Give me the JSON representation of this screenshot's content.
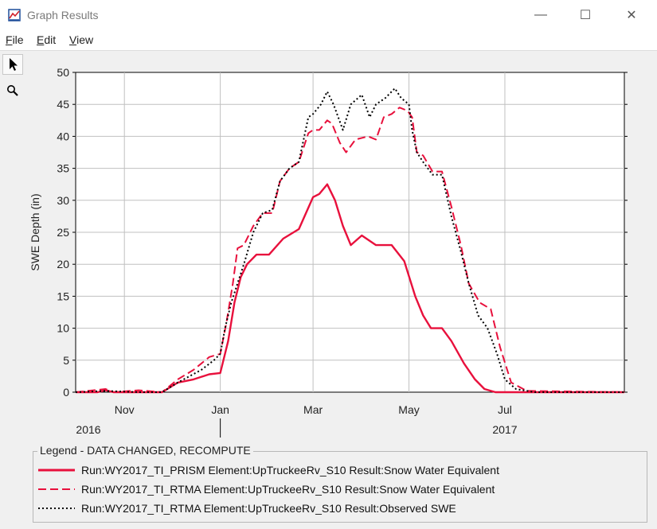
{
  "window": {
    "title": "Graph Results",
    "controls": {
      "minimize": "—",
      "maximize": "☐",
      "close": "✕"
    }
  },
  "menu": [
    {
      "key": "F",
      "rest": "ile"
    },
    {
      "key": "E",
      "rest": "dit"
    },
    {
      "key": "V",
      "rest": "iew"
    }
  ],
  "toolbar": {
    "tools": [
      "pointer-icon",
      "zoom-icon"
    ]
  },
  "colors": {
    "prism": "#e8103c",
    "rtma": "#e8103c",
    "observed": "#000000",
    "grid": "#c0c0c0"
  },
  "chart_data": {
    "type": "line",
    "title": "",
    "xlabel": "",
    "ylabel": "SWE Depth (in)",
    "ylim": [
      0,
      50
    ],
    "xlim": [
      "2016-10-01",
      "2017-09-15"
    ],
    "yticks": [
      0,
      5,
      10,
      15,
      20,
      25,
      30,
      35,
      40,
      45,
      50
    ],
    "xticks": [
      {
        "date": "2016-11-01",
        "label": "Nov"
      },
      {
        "date": "2017-01-01",
        "label": "Jan"
      },
      {
        "date": "2017-03-01",
        "label": "Mar"
      },
      {
        "date": "2017-05-01",
        "label": "May"
      },
      {
        "date": "2017-07-01",
        "label": "Jul"
      }
    ],
    "year_labels": [
      {
        "date": "2016-10-01",
        "label": "2016"
      },
      {
        "date": "2017-07-01",
        "label": "2017"
      }
    ],
    "grid": true,
    "legend_title": "Legend - DATA CHANGED, RECOMPUTE",
    "legend_position": "bottom",
    "series": [
      {
        "name": "Run:WY2017_TI_PRISM Element:UpTruckeeRv_S10 Result:Snow Water Equivalent",
        "style": "solid",
        "x": [
          "2016-10-01",
          "2016-10-15",
          "2016-10-20",
          "2016-10-25",
          "2016-11-10",
          "2016-11-25",
          "2016-12-05",
          "2016-12-15",
          "2016-12-25",
          "2017-01-01",
          "2017-01-06",
          "2017-01-10",
          "2017-01-14",
          "2017-01-18",
          "2017-01-24",
          "2017-02-01",
          "2017-02-10",
          "2017-02-20",
          "2017-03-01",
          "2017-03-05",
          "2017-03-10",
          "2017-03-15",
          "2017-03-20",
          "2017-03-25",
          "2017-04-01",
          "2017-04-10",
          "2017-04-20",
          "2017-04-28",
          "2017-05-05",
          "2017-05-10",
          "2017-05-15",
          "2017-05-22",
          "2017-05-28",
          "2017-06-05",
          "2017-06-12",
          "2017-06-18",
          "2017-06-25",
          "2017-07-01",
          "2017-09-15"
        ],
        "y": [
          0,
          0,
          0.3,
          0,
          0,
          0,
          1.5,
          2.0,
          2.8,
          3.0,
          8.0,
          14.0,
          18.0,
          20.0,
          21.5,
          21.5,
          24.0,
          25.5,
          30.5,
          31.0,
          32.5,
          30.0,
          26.0,
          23.0,
          24.5,
          23.0,
          23.0,
          20.5,
          15.0,
          12.0,
          10.0,
          10.0,
          8.0,
          4.5,
          2.0,
          0.5,
          0,
          0,
          0
        ]
      },
      {
        "name": "Run:WY2017_TI_RTMA Element:UpTruckeeRv_S10 Result:Snow Water Equivalent",
        "style": "dashed",
        "x": [
          "2016-10-01",
          "2016-10-20",
          "2016-10-25",
          "2016-11-10",
          "2016-11-25",
          "2016-12-05",
          "2016-12-15",
          "2016-12-25",
          "2017-01-01",
          "2017-01-05",
          "2017-01-09",
          "2017-01-12",
          "2017-01-16",
          "2017-01-22",
          "2017-01-28",
          "2017-02-03",
          "2017-02-08",
          "2017-02-14",
          "2017-02-20",
          "2017-02-26",
          "2017-03-01",
          "2017-03-05",
          "2017-03-10",
          "2017-03-13",
          "2017-03-18",
          "2017-03-22",
          "2017-03-28",
          "2017-04-05",
          "2017-04-10",
          "2017-04-15",
          "2017-04-20",
          "2017-04-25",
          "2017-04-30",
          "2017-05-03",
          "2017-05-06",
          "2017-05-10",
          "2017-05-16",
          "2017-05-22",
          "2017-05-28",
          "2017-06-03",
          "2017-06-08",
          "2017-06-15",
          "2017-06-22",
          "2017-06-28",
          "2017-07-05",
          "2017-07-15",
          "2017-09-15"
        ],
        "y": [
          0,
          0.5,
          0,
          0.3,
          0,
          2.0,
          3.5,
          5.5,
          6.0,
          11.0,
          17.0,
          22.5,
          23.0,
          26.0,
          28.0,
          28.0,
          33.0,
          35.0,
          36.0,
          40.5,
          41.0,
          41.0,
          42.5,
          42.0,
          39.0,
          37.5,
          39.5,
          40.0,
          39.5,
          43.0,
          43.5,
          44.5,
          44.0,
          43.0,
          37.5,
          37.0,
          34.5,
          34.5,
          29.0,
          23.0,
          17.0,
          14.0,
          13.0,
          7.0,
          1.5,
          0.2,
          0
        ]
      },
      {
        "name": "Run:WY2017_TI_RTMA Element:UpTruckeeRv_S10 Result:Observed SWE",
        "style": "dotted",
        "x": [
          "2016-10-01",
          "2016-10-20",
          "2016-11-10",
          "2016-11-25",
          "2016-12-05",
          "2016-12-20",
          "2016-12-28",
          "2017-01-01",
          "2017-01-04",
          "2017-01-08",
          "2017-01-12",
          "2017-01-16",
          "2017-01-22",
          "2017-01-28",
          "2017-02-03",
          "2017-02-08",
          "2017-02-14",
          "2017-02-20",
          "2017-02-26",
          "2017-03-01",
          "2017-03-06",
          "2017-03-10",
          "2017-03-14",
          "2017-03-20",
          "2017-03-25",
          "2017-04-01",
          "2017-04-06",
          "2017-04-10",
          "2017-04-16",
          "2017-04-22",
          "2017-04-26",
          "2017-05-01",
          "2017-05-03",
          "2017-05-06",
          "2017-05-10",
          "2017-05-16",
          "2017-05-22",
          "2017-05-28",
          "2017-06-03",
          "2017-06-08",
          "2017-06-14",
          "2017-06-20",
          "2017-06-26",
          "2017-07-01",
          "2017-07-08",
          "2017-07-20",
          "2017-09-15"
        ],
        "y": [
          0,
          0.2,
          0,
          0,
          1.5,
          3.5,
          5.0,
          6.0,
          10.0,
          14.0,
          17.0,
          20.0,
          25.0,
          28.0,
          28.5,
          33.0,
          35.0,
          36.0,
          43.0,
          43.5,
          45.0,
          47.0,
          45.0,
          41.0,
          45.0,
          46.5,
          43.0,
          45.0,
          46.0,
          47.5,
          46.0,
          45.0,
          41.0,
          37.5,
          36.0,
          34.0,
          34.0,
          27.5,
          22.0,
          17.0,
          12.0,
          10.0,
          6.0,
          2.0,
          0.5,
          0,
          0
        ]
      }
    ]
  }
}
